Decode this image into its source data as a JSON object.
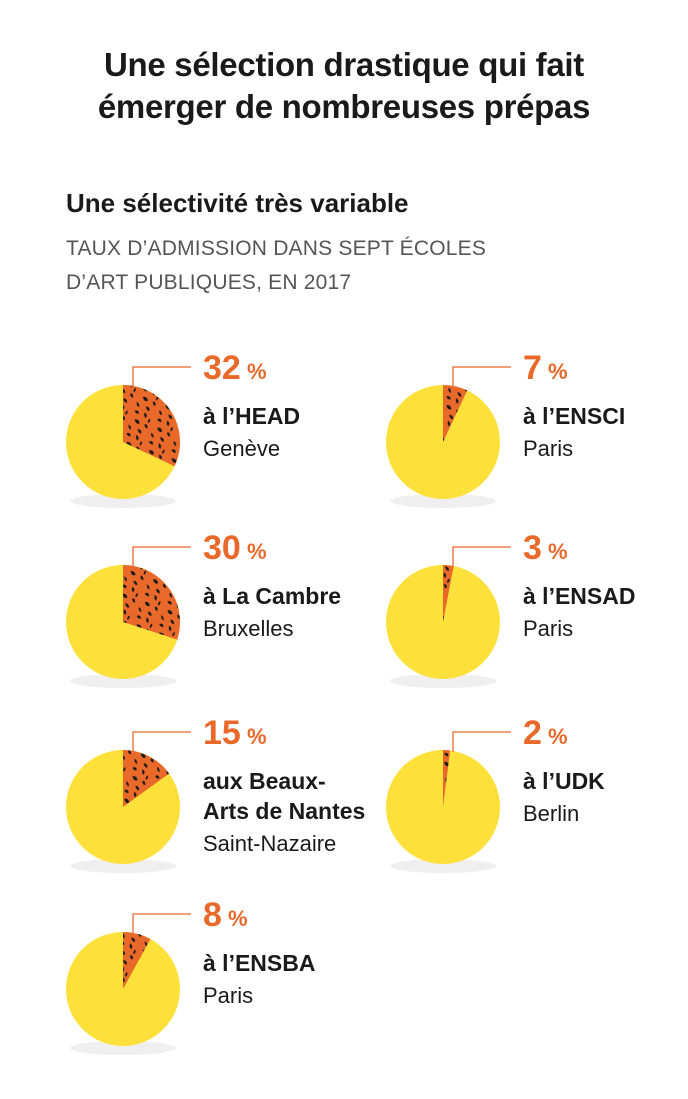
{
  "title_line1": "Une sélection drastique qui fait",
  "title_line2": "émerger de nombreuses prépas",
  "subtitle": "Une sélectivité très variable",
  "caption_line1": "TAUX D’ADMISSION DANS SEPT ÉCOLES",
  "caption_line2": "D’ART PUBLIQUES, EN 2017",
  "colors": {
    "pie_base": "#fde13a",
    "slice": "#e8692a",
    "slice_pattern": "#1a1a1a",
    "shadow": "#efefef",
    "leader": "#e8692a",
    "value_text": "#e8692a"
  },
  "chart_data": {
    "type": "pie",
    "unit": "%",
    "items": [
      {
        "value": 32,
        "school": "à l’HEAD",
        "city": "Genève"
      },
      {
        "value": 7,
        "school": "à l’ENSCI",
        "city": "Paris"
      },
      {
        "value": 30,
        "school": "à La Cambre",
        "city": "Bruxelles"
      },
      {
        "value": 3,
        "school": "à l’ENSAD",
        "city": "Paris"
      },
      {
        "value": 15,
        "school": "aux Beaux-|Arts de Nantes",
        "city": "Saint-Nazaire"
      },
      {
        "value": 2,
        "school": "à l’UDK",
        "city": "Berlin"
      },
      {
        "value": 8,
        "school": "à l’ENSBA",
        "city": "Paris"
      }
    ]
  }
}
